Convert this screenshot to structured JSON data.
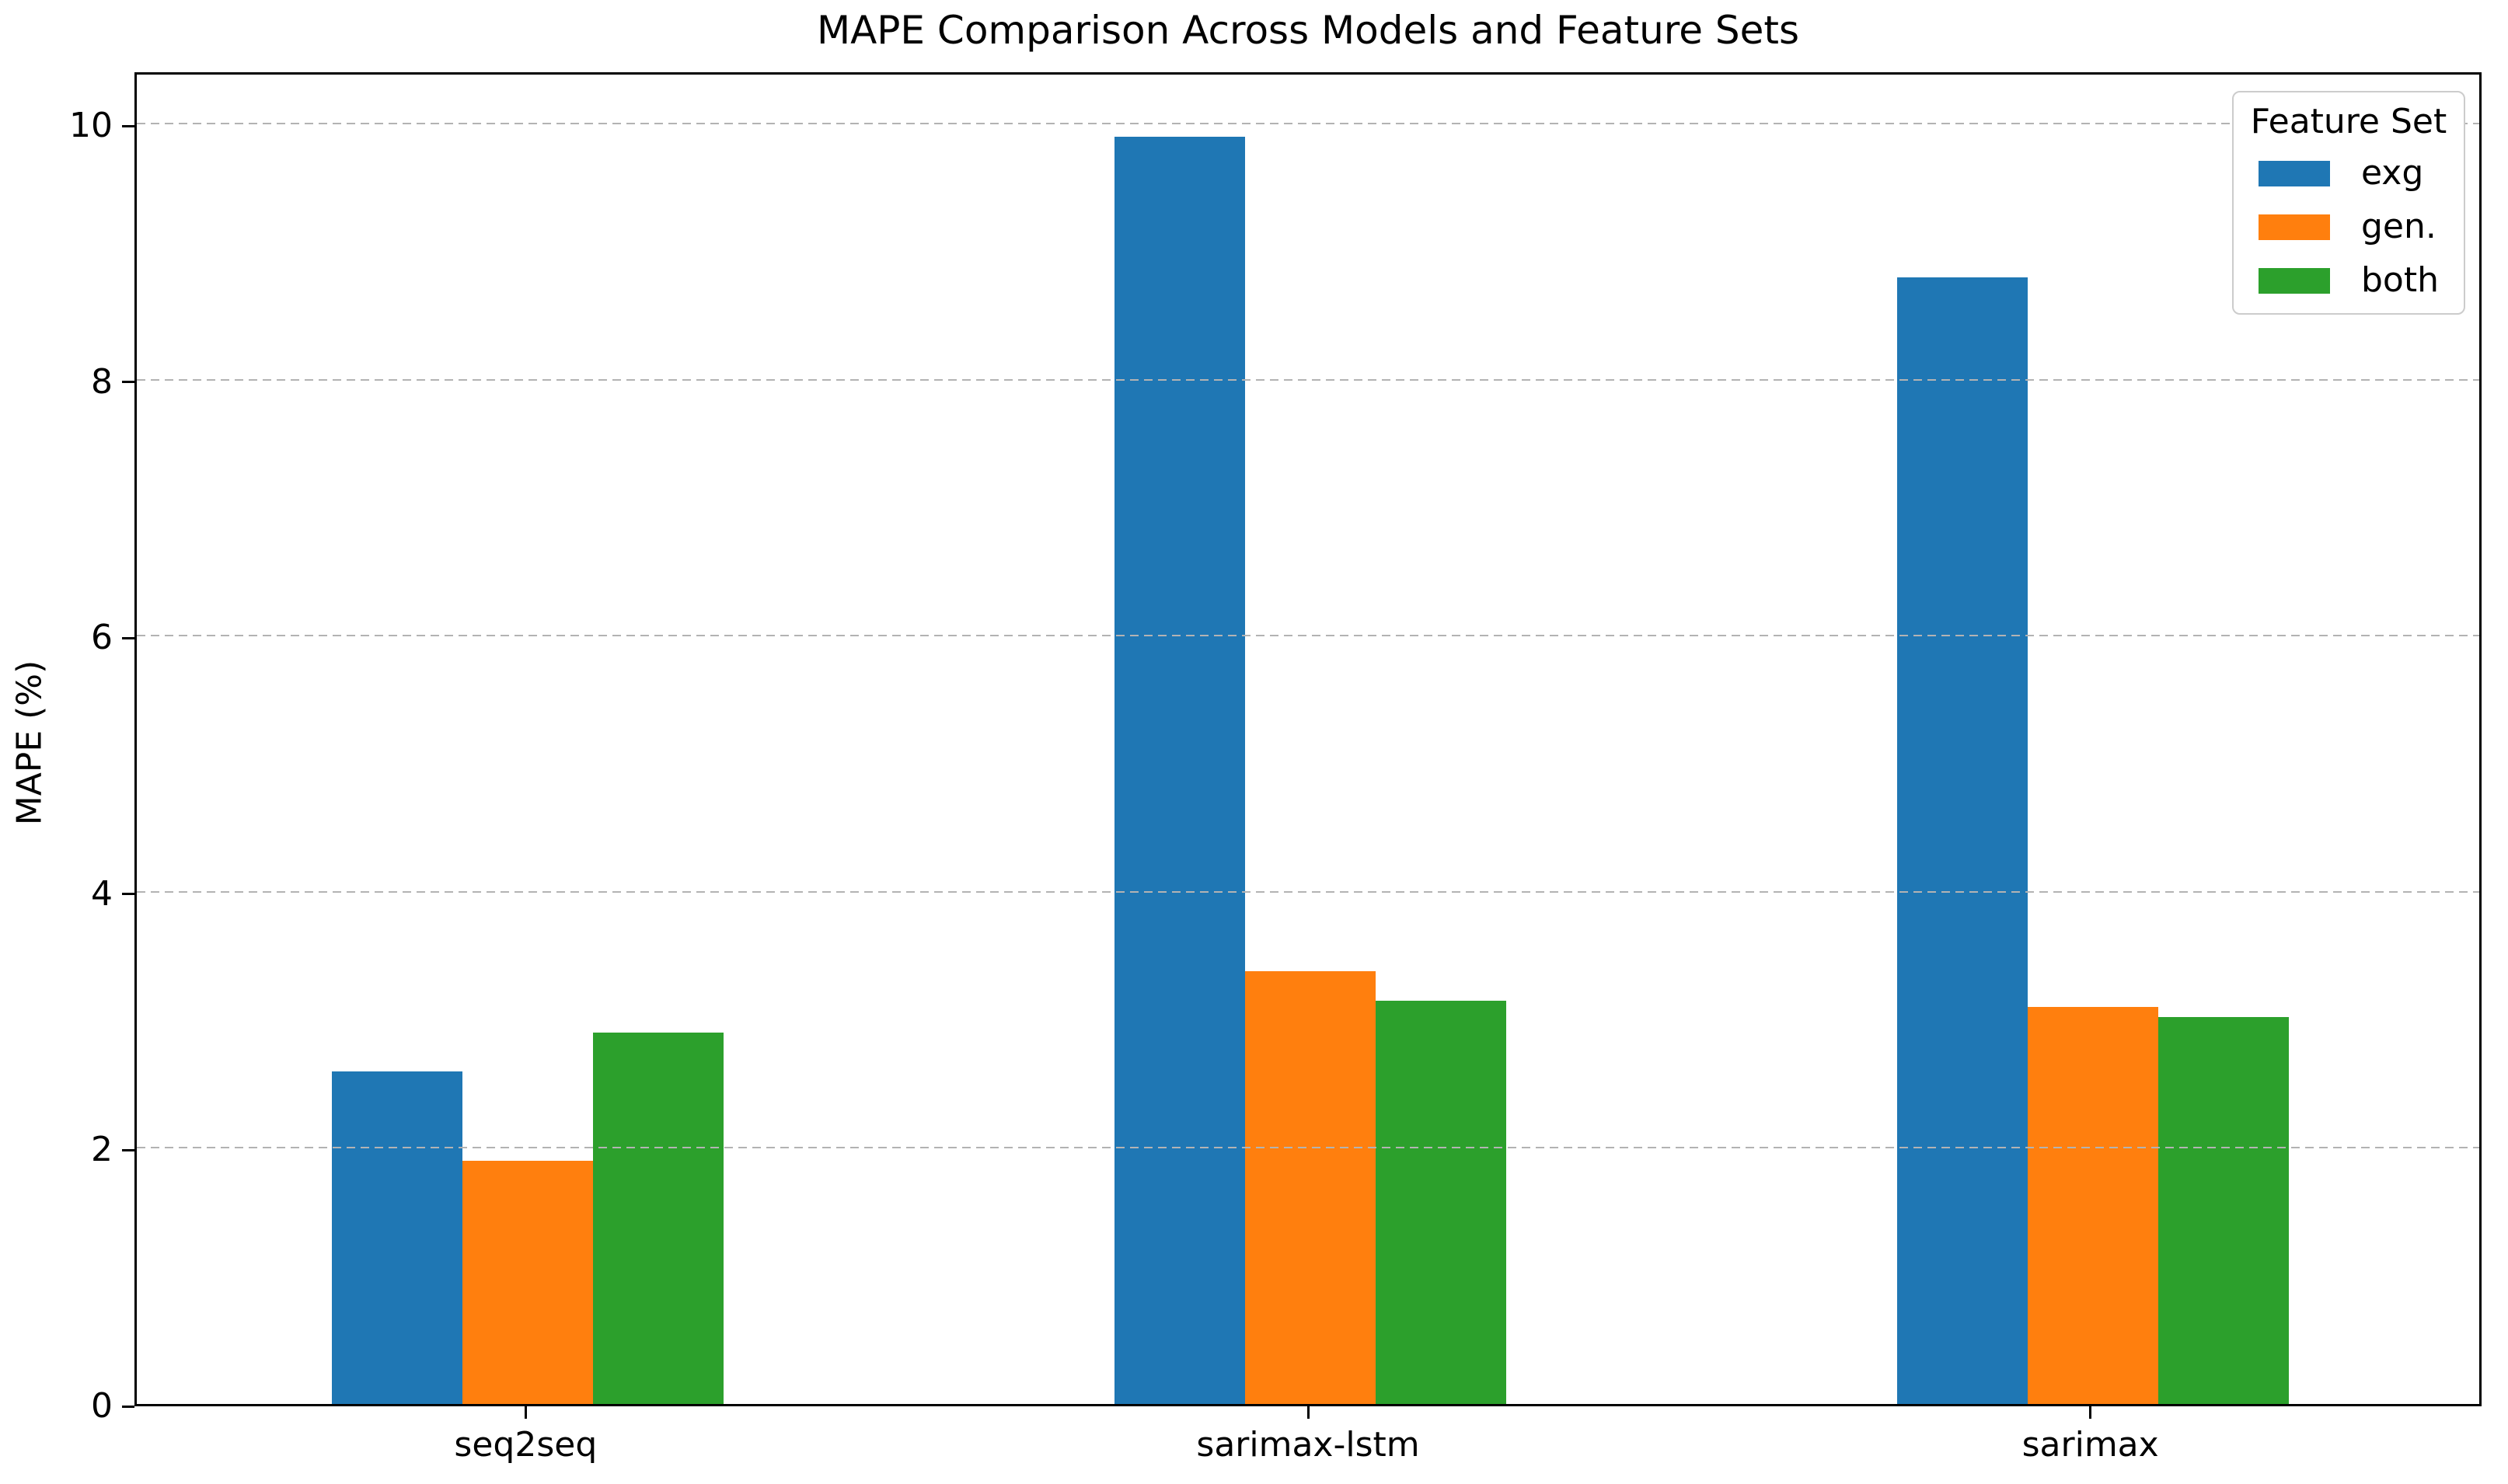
{
  "chart_data": {
    "type": "bar",
    "title": "MAPE Comparison Across Models and Feature Sets",
    "xlabel": "",
    "ylabel": "MAPE (%)",
    "categories": [
      "seq2seq",
      "sarimax-lstm",
      "sarimax"
    ],
    "series": [
      {
        "name": "exg",
        "color": "#1f77b4",
        "values": [
          2.6,
          9.9,
          8.8
        ]
      },
      {
        "name": "gen.",
        "color": "#ff7f0e",
        "values": [
          1.9,
          3.38,
          3.1
        ]
      },
      {
        "name": "both",
        "color": "#2ca02c",
        "values": [
          2.9,
          3.15,
          3.02
        ]
      }
    ],
    "ylim": [
      0,
      10.42
    ],
    "yticks": [
      0,
      2,
      4,
      6,
      8,
      10
    ],
    "ytick_labels": [
      "0",
      "2",
      "4",
      "6",
      "8",
      "10"
    ],
    "grid": "horizontal-dashed",
    "grid_color": "#b3b3b3",
    "legend": {
      "title": "Feature Set",
      "position": "upper-right",
      "entries": [
        "exg",
        "gen.",
        "both"
      ]
    }
  }
}
